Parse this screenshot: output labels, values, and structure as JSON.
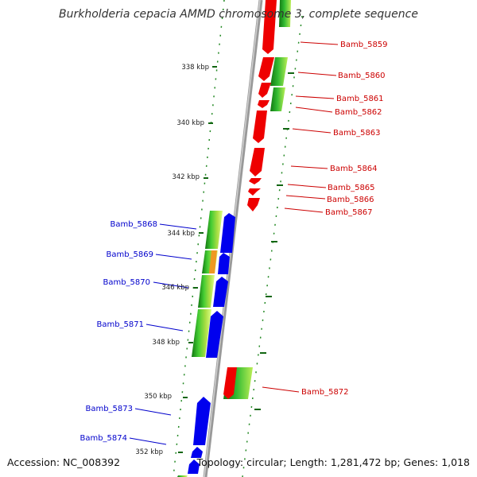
{
  "title": "Burkholderia cepacia AMMD chromosome 3, complete sequence",
  "accession": "Accession: NC_008392",
  "summary": "Topology: circular; Length: 1,281,472 bp; Genes: 1,018",
  "ticks": [
    "338 kbp",
    "340 kbp",
    "342 kbp",
    "344 kbp",
    "346 kbp",
    "348 kbp",
    "350 kbp",
    "352 kbp"
  ],
  "genes_right": [
    "Bamb_5859",
    "Bamb_5860",
    "Bamb_5861",
    "Bamb_5862",
    "Bamb_5863",
    "Bamb_5864",
    "Bamb_5865",
    "Bamb_5866",
    "Bamb_5867",
    "Bamb_5872"
  ],
  "genes_left": [
    "Bamb_5868",
    "Bamb_5869",
    "Bamb_5870",
    "Bamb_5871",
    "Bamb_5873",
    "Bamb_5874"
  ],
  "colors": {
    "forward_cds": "#ee0000",
    "reverse_cds": "#0000ee",
    "gc_high": "#33aa33",
    "gc_low": "#aadd44",
    "gc_dark": "#116611",
    "backbone": "#888888",
    "label_red": "#cc0000",
    "label_blue": "#0000cc"
  }
}
